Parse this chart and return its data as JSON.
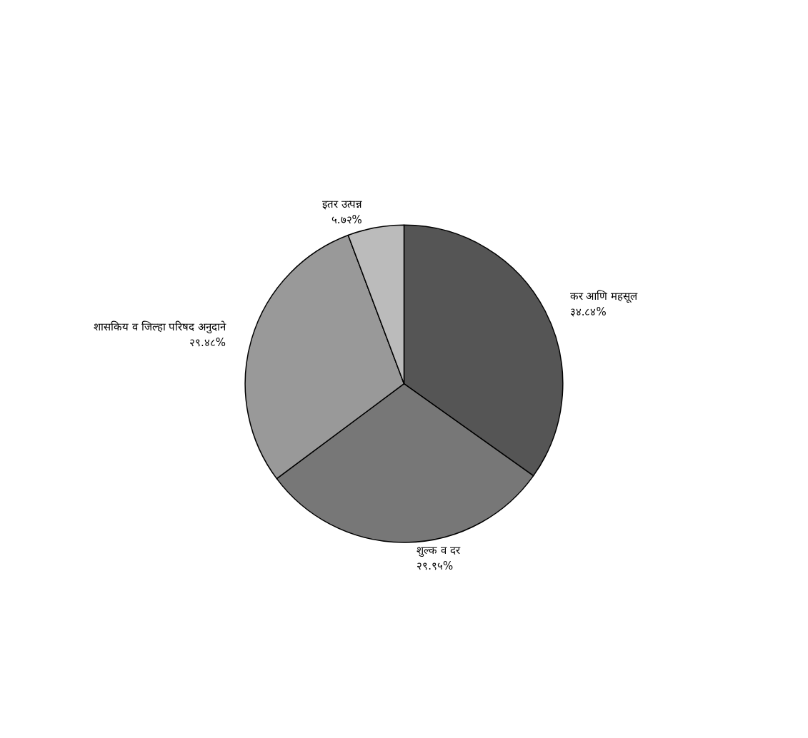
{
  "chart_data": {
    "type": "pie",
    "categories": [
      "कर आणि महसूल",
      "शुल्क व दर",
      "शासकिय व जिल्हा परिषद अनुदाने",
      "इतर उत्पन्न"
    ],
    "values": [
      34.84,
      29.95,
      29.48,
      5.72
    ],
    "value_labels": [
      "३४.८४%",
      "२९.९५%",
      "२९.४८%",
      "५.७२%"
    ],
    "colors": [
      "#555555",
      "#777777",
      "#999999",
      "#bbbbbb"
    ],
    "legend": false
  }
}
